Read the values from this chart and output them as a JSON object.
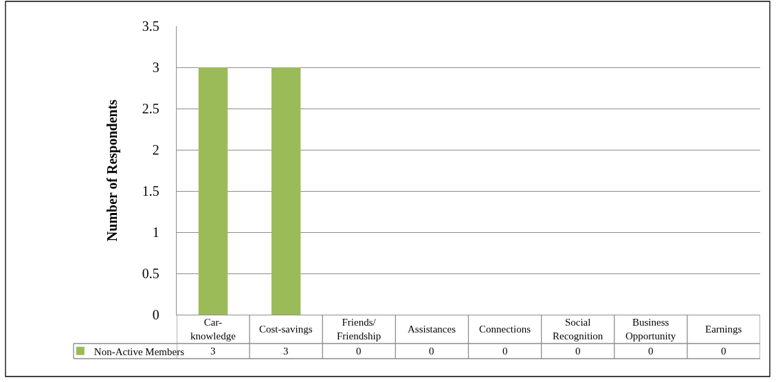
{
  "chart_data": {
    "type": "bar",
    "ylabel": "Number of Respondents",
    "categories": [
      "Car-knowledge",
      "Cost-savings",
      "Friends/Friendship",
      "Assistances",
      "Connections",
      "Social Recognition",
      "Business Opportunity",
      "Earnings"
    ],
    "series": [
      {
        "name": "Non-Active Members",
        "color": "#9bbb59",
        "values": [
          3,
          3,
          0,
          0,
          0,
          0,
          0,
          0
        ]
      }
    ],
    "ylim": [
      0,
      3.5
    ],
    "yticks": [
      0,
      0.5,
      1,
      1.5,
      2,
      2.5,
      3,
      3.5
    ],
    "grid": "y",
    "legend": "bottom left",
    "data_labels": true
  }
}
